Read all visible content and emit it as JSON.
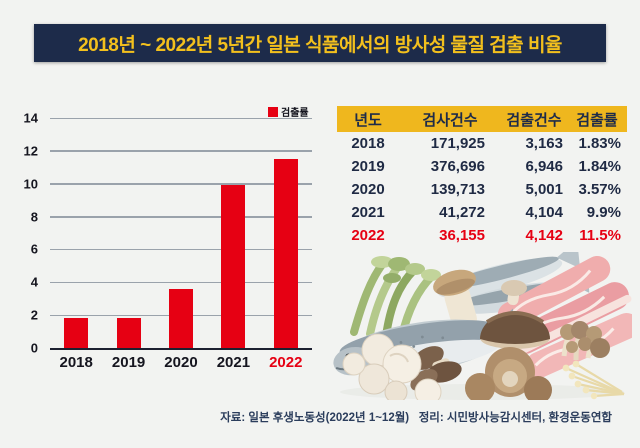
{
  "page": {
    "title": "2018년 ~ 2022년 5년간 일본 식품에서의 방사성 물질 검출 비율",
    "title_bg": "#1d2b4a",
    "title_color": "#f3c01d",
    "background": "#f2f3f1",
    "source_note": "자료: 일본 후생노동성(2022년 1~12월)   정리: 시민방사능감시센터, 환경운동연합"
  },
  "chart_data": {
    "type": "bar",
    "title": "",
    "xlabel": "",
    "ylabel": "",
    "categories": [
      "2018",
      "2019",
      "2020",
      "2021",
      "2022"
    ],
    "values": [
      1.83,
      1.84,
      3.57,
      9.9,
      11.5
    ],
    "legend": [
      "검출률"
    ],
    "legend_position": "top-right",
    "ylim": [
      0,
      14
    ],
    "yticks": [
      0,
      2,
      4,
      6,
      8,
      10,
      12,
      14
    ],
    "grid": true,
    "bar_color": "#e60013",
    "highlight_last_category": true,
    "highlight_color": "#e60013"
  },
  "table": {
    "headers": [
      "년도",
      "검사건수",
      "검출건수",
      "검출률"
    ],
    "header_bg": "#efb71e",
    "header_text_color": "#1d2b4a",
    "text_color": "#1f2a44",
    "highlight_row_index": 4,
    "highlight_color": "#e60013",
    "rows": [
      [
        "2018",
        "171,925",
        "3,163",
        "1.83%"
      ],
      [
        "2019",
        "376,696",
        "6,946",
        "1.84%"
      ],
      [
        "2020",
        "139,713",
        "5,001",
        "3.57%"
      ],
      [
        "2021",
        "41,272",
        "4,104",
        "9.9%"
      ],
      [
        "2022",
        "36,155",
        "4,142",
        "11.5%"
      ]
    ]
  },
  "illustration": {
    "items": [
      "fish",
      "greens",
      "meat-slices",
      "mushrooms",
      "enoki"
    ]
  }
}
